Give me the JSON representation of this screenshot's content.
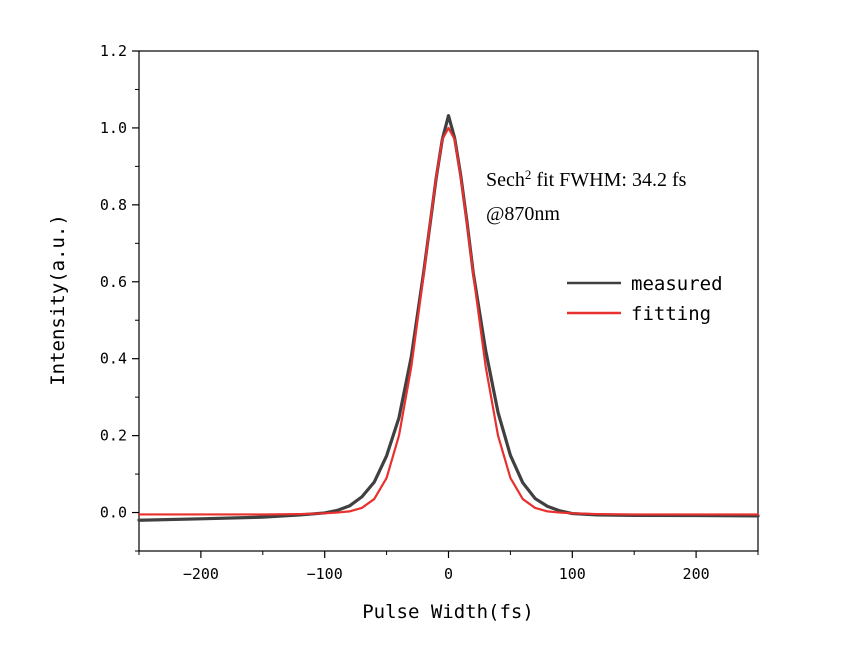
{
  "chart_data": {
    "type": "line",
    "title": "",
    "xlabel": "Pulse Width(fs)",
    "ylabel": "Intensity(a.u.)",
    "xlim": [
      -250,
      250
    ],
    "ylim": [
      -0.1,
      1.2
    ],
    "x_ticks": [
      -200,
      -100,
      0,
      100,
      200
    ],
    "x_tick_labels": [
      "−200",
      "−100",
      "0",
      "100",
      "200"
    ],
    "y_ticks": [
      0.0,
      0.2,
      0.4,
      0.6,
      0.8,
      1.0,
      1.2
    ],
    "y_tick_labels": [
      "0.0",
      "0.2",
      "0.4",
      "0.6",
      "0.8",
      "1.0",
      "1.2"
    ],
    "grid": false,
    "legend_position": "right",
    "series": [
      {
        "name": "measured",
        "color": "#404040",
        "x": [
          -250,
          -200,
          -150,
          -120,
          -100,
          -90,
          -80,
          -70,
          -60,
          -50,
          -40,
          -30,
          -20,
          -15,
          -10,
          -5,
          0,
          5,
          10,
          15,
          20,
          30,
          40,
          50,
          60,
          70,
          80,
          90,
          100,
          120,
          150,
          200,
          250
        ],
        "y": [
          -0.02,
          -0.018,
          -0.015,
          -0.01,
          -0.005,
          0.002,
          0.015,
          0.04,
          0.08,
          0.15,
          0.25,
          0.41,
          0.63,
          0.75,
          0.87,
          0.97,
          1.03,
          0.97,
          0.87,
          0.75,
          0.62,
          0.42,
          0.26,
          0.15,
          0.08,
          0.04,
          0.02,
          0.008,
          0.0,
          -0.005,
          -0.008,
          -0.01,
          -0.012
        ]
      },
      {
        "name": "fitting",
        "color": "#e8302e",
        "fwhm_fs": 34.2,
        "x": [
          -250,
          -200,
          -150,
          -120,
          -100,
          -90,
          -80,
          -70,
          -60,
          -50,
          -40,
          -30,
          -20,
          -15,
          -10,
          -5,
          0,
          5,
          10,
          15,
          20,
          30,
          40,
          50,
          60,
          70,
          80,
          90,
          100,
          120,
          150,
          200,
          250
        ],
        "y": [
          -0.005,
          -0.005,
          -0.005,
          -0.004,
          -0.002,
          0.0,
          0.003,
          0.012,
          0.035,
          0.09,
          0.2,
          0.38,
          0.62,
          0.75,
          0.87,
          0.97,
          1.0,
          0.97,
          0.87,
          0.75,
          0.62,
          0.38,
          0.2,
          0.09,
          0.035,
          0.012,
          0.003,
          0.0,
          -0.002,
          -0.004,
          -0.005,
          -0.005,
          -0.005
        ]
      }
    ],
    "annotations": {
      "line1_prefix": "Sech",
      "line1_sup": "2",
      "line1_suffix": " fit FWHM: 34.2 fs",
      "line2": "@870nm"
    }
  }
}
